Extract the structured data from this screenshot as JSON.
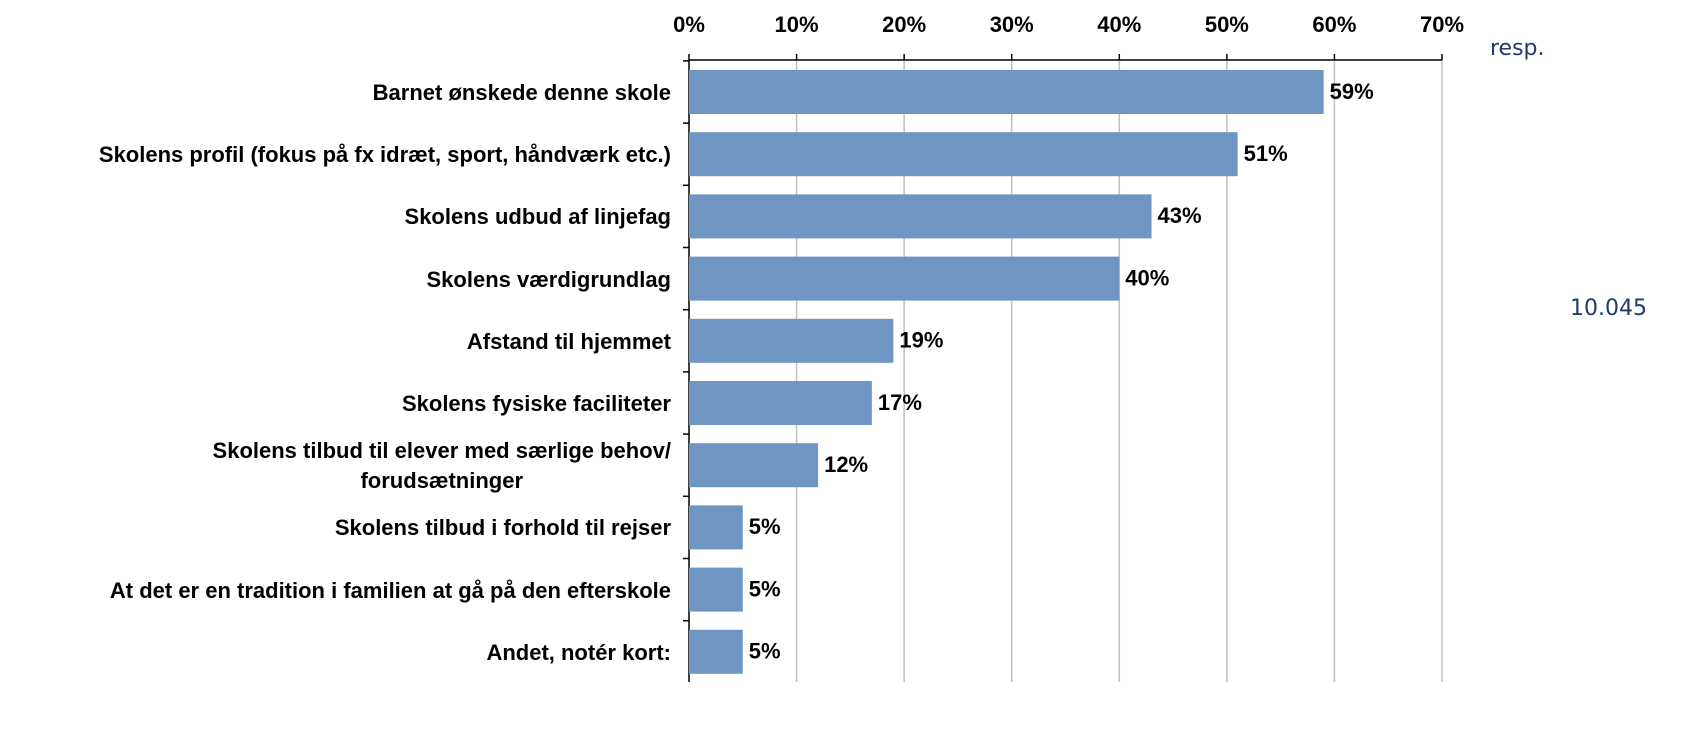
{
  "chart_data": {
    "type": "bar",
    "orientation": "horizontal",
    "categories": [
      "Barnet ønskede denne skole",
      "Skolens profil (fokus på fx idræt, sport, håndværk etc.)",
      "Skolens udbud af linjefag",
      "Skolens værdigrundlag",
      "Afstand til hjemmet",
      "Skolens fysiske faciliteter",
      "Skolens tilbud til elever med særlige behov/\nforudsætninger",
      "Skolens tilbud i forhold til rejser",
      "At det er en tradition i familien at gå på den efterskole",
      "Andet, notér kort:"
    ],
    "values": [
      59,
      51,
      43,
      40,
      19,
      17,
      12,
      5,
      5,
      5
    ],
    "value_labels": [
      "59%",
      "51%",
      "43%",
      "40%",
      "19%",
      "17%",
      "12%",
      "5%",
      "5%",
      "5%"
    ],
    "color": "#6f96c2",
    "xlim": [
      0,
      70
    ],
    "xticks": [
      {
        "value": 0,
        "label": "0%"
      },
      {
        "value": 10,
        "label": "10%"
      },
      {
        "value": 20,
        "label": "20%"
      },
      {
        "value": 30,
        "label": "30%"
      },
      {
        "value": 40,
        "label": "40%"
      },
      {
        "value": 50,
        "label": "50%"
      },
      {
        "value": 60,
        "label": "60%"
      },
      {
        "value": 70,
        "label": "70%"
      }
    ],
    "grid": true,
    "annotations": [
      "resp.",
      "10.045"
    ]
  }
}
